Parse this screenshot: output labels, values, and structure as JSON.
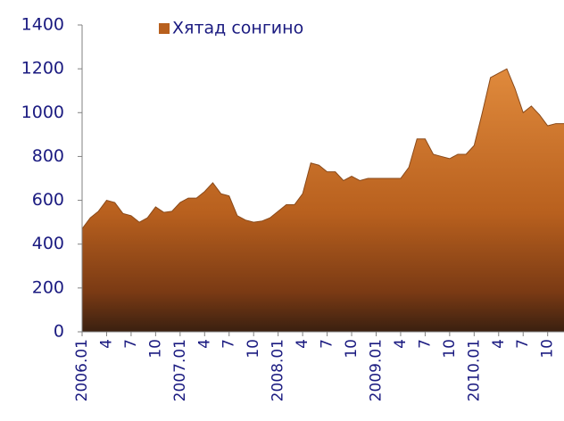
{
  "chart_data": {
    "type": "area",
    "categories": [
      "2006.01",
      null,
      null,
      "4",
      null,
      null,
      "7",
      null,
      null,
      "10",
      null,
      null,
      "2007.01",
      null,
      null,
      "4",
      null,
      null,
      "7",
      null,
      null,
      "10",
      null,
      null,
      "2008.01",
      null,
      null,
      "4",
      null,
      null,
      "7",
      null,
      null,
      "10",
      null,
      null,
      "2009.01",
      null,
      null,
      "4",
      null,
      null,
      "7",
      null,
      null,
      "10",
      null,
      null,
      "2010.01",
      null,
      null,
      "4",
      null,
      null,
      "7",
      null,
      null,
      "10",
      null,
      null
    ],
    "series": [
      {
        "name": "Хятад сонгино",
        "color": "#b8601e",
        "values": [
          470,
          520,
          550,
          600,
          590,
          540,
          530,
          500,
          520,
          570,
          545,
          550,
          590,
          610,
          610,
          640,
          680,
          630,
          620,
          530,
          510,
          500,
          505,
          520,
          550,
          580,
          580,
          630,
          770,
          760,
          730,
          730,
          690,
          710,
          690,
          700,
          700,
          700,
          700,
          700,
          750,
          880,
          880,
          810,
          800,
          790,
          810,
          810,
          850,
          1000,
          1160,
          1180,
          1200,
          1110,
          1000,
          1030,
          990,
          940,
          950,
          950
        ]
      }
    ],
    "ylim": [
      0,
      1400
    ],
    "yticks": [
      0,
      200,
      400,
      600,
      800,
      1000,
      1200,
      1400
    ],
    "grid": false,
    "legend": "top"
  }
}
